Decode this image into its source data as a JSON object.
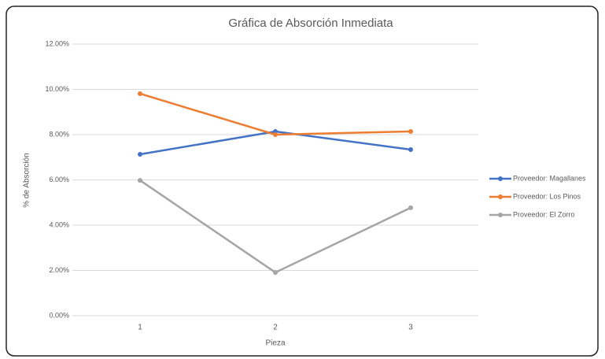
{
  "chart_data": {
    "type": "line",
    "title": "Gráfica de Absorción Inmediata",
    "x_label": "Pieza",
    "y_label": "% de Absorción",
    "categories": [
      "1",
      "2",
      "3"
    ],
    "series": [
      {
        "name": "Proveedor: Magallanes",
        "color": "#4472c4",
        "values": [
          7.13,
          8.14,
          7.34
        ]
      },
      {
        "name": "Proveedor: Los Pinos",
        "color": "#ed7d31",
        "values": [
          9.81,
          8.0,
          8.14
        ]
      },
      {
        "name": "Proveedor: El Zorro",
        "color": "#a5a5a5",
        "values": [
          5.98,
          1.91,
          4.77
        ]
      }
    ],
    "ylim": [
      0,
      12
    ],
    "yticks": [
      {
        "value": 0,
        "label": "0.00%"
      },
      {
        "value": 2,
        "label": "2.00%"
      },
      {
        "value": 4,
        "label": "4.00%"
      },
      {
        "value": 6,
        "label": "6.00%"
      },
      {
        "value": 8,
        "label": "8.00%"
      },
      {
        "value": 10,
        "label": "10.00%"
      },
      {
        "value": 12,
        "label": "12.00%"
      }
    ],
    "grid": true,
    "legend": "right"
  }
}
